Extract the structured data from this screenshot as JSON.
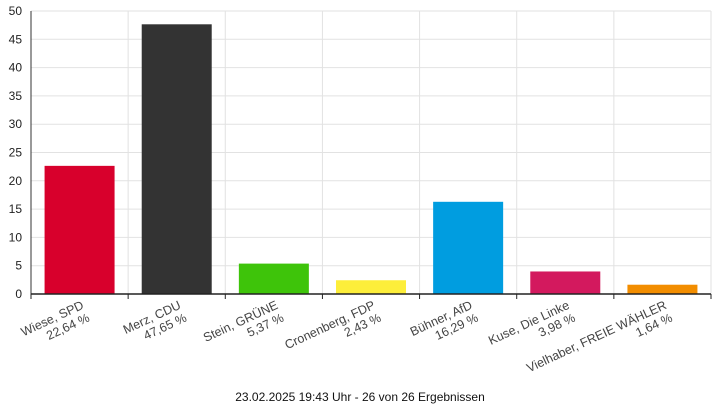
{
  "chart_data": {
    "type": "bar",
    "categories": [
      [
        "Wiese, SPD",
        "22,64 %"
      ],
      [
        "Merz, CDU",
        "47,65 %"
      ],
      [
        "Stein, GRÜNE",
        "5,37 %"
      ],
      [
        "Cronenberg, FDP",
        "2,43 %"
      ],
      [
        "Bühner, AfD",
        "16,29 %"
      ],
      [
        "Kuse, Die Linke",
        "3,98 %"
      ],
      [
        "Vielhaber, FREIE WÄHLER",
        "1,64 %"
      ]
    ],
    "values": [
      22.64,
      47.65,
      5.37,
      2.43,
      16.29,
      3.98,
      1.64
    ],
    "colors": [
      "#d8002c",
      "#333333",
      "#3ec40a",
      "#fdee3a",
      "#009de0",
      "#d3195e",
      "#f28d00"
    ],
    "ylim": [
      0,
      50
    ],
    "yticks": [
      0,
      5,
      10,
      15,
      20,
      25,
      30,
      35,
      40,
      45,
      50
    ],
    "grid": true,
    "title": "",
    "xlabel": "",
    "ylabel": ""
  },
  "footer": "23.02.2025 19:43 Uhr - 26 von 26 Ergebnissen"
}
